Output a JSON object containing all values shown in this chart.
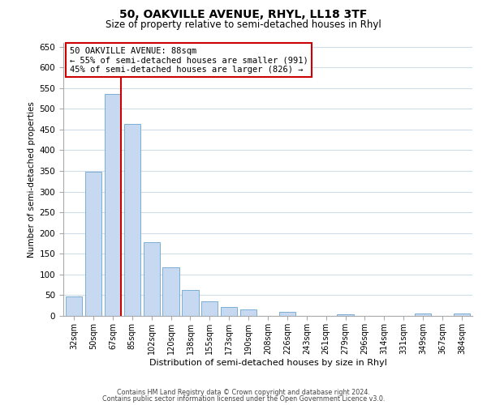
{
  "title": "50, OAKVILLE AVENUE, RHYL, LL18 3TF",
  "subtitle": "Size of property relative to semi-detached houses in Rhyl",
  "xlabel": "Distribution of semi-detached houses by size in Rhyl",
  "ylabel": "Number of semi-detached properties",
  "bin_labels": [
    "32sqm",
    "50sqm",
    "67sqm",
    "85sqm",
    "102sqm",
    "120sqm",
    "138sqm",
    "155sqm",
    "173sqm",
    "190sqm",
    "208sqm",
    "226sqm",
    "243sqm",
    "261sqm",
    "279sqm",
    "296sqm",
    "314sqm",
    "331sqm",
    "349sqm",
    "367sqm",
    "384sqm"
  ],
  "bar_heights": [
    46,
    348,
    535,
    463,
    178,
    118,
    62,
    35,
    22,
    15,
    0,
    10,
    0,
    0,
    3,
    0,
    0,
    0,
    5,
    0,
    5
  ],
  "bar_color": "#c6d9f0",
  "bar_edge_color": "#7bafd4",
  "property_line_color": "#cc0000",
  "ylim": [
    0,
    660
  ],
  "yticks": [
    0,
    50,
    100,
    150,
    200,
    250,
    300,
    350,
    400,
    450,
    500,
    550,
    600,
    650
  ],
  "annotation_title": "50 OAKVILLE AVENUE: 88sqm",
  "annotation_line1": "← 55% of semi-detached houses are smaller (991)",
  "annotation_line2": "45% of semi-detached houses are larger (826) →",
  "footer_line1": "Contains HM Land Registry data © Crown copyright and database right 2024.",
  "footer_line2": "Contains public sector information licensed under the Open Government Licence v3.0.",
  "background_color": "#ffffff",
  "grid_color": "#d0dce8"
}
